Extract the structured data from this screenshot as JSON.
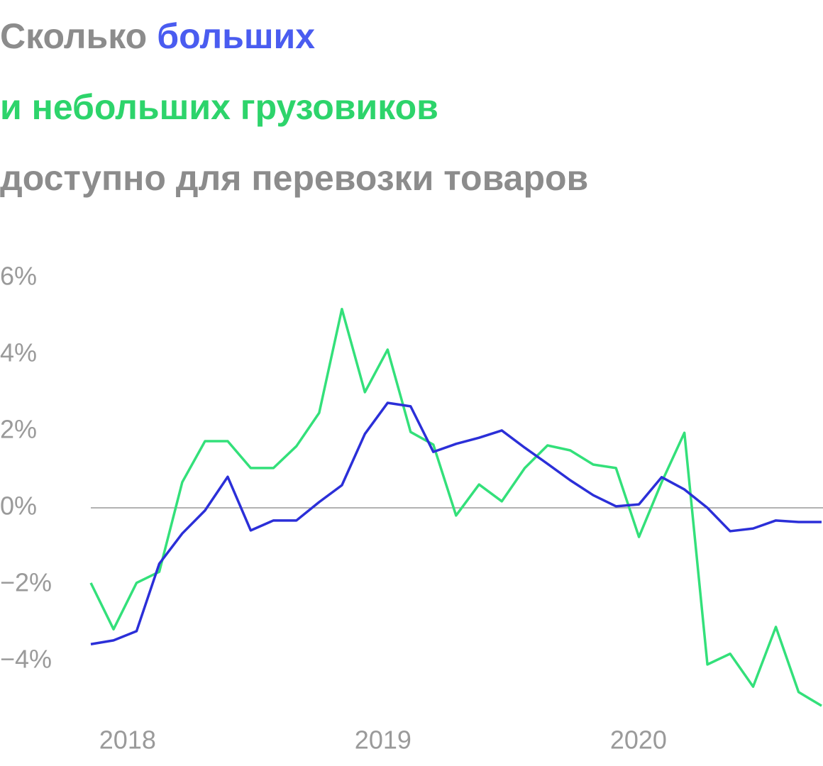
{
  "chart_data": {
    "type": "line",
    "title_lines": [
      [
        {
          "text": "Сколько",
          "color": "#8c8c8c"
        },
        {
          "text": "больших",
          "color": "#4a5cf0"
        }
      ],
      [
        {
          "text": "и небольших грузовиков",
          "color": "#2dd46b"
        }
      ],
      [
        {
          "text": "доступно для перевозки товаров",
          "color": "#8c8c8c"
        }
      ]
    ],
    "x": [
      2017.856,
      2017.945,
      2018.035,
      2018.124,
      2018.214,
      2018.303,
      2018.392,
      2018.482,
      2018.571,
      2018.661,
      2018.75,
      2018.839,
      2018.929,
      2019.018,
      2019.108,
      2019.197,
      2019.286,
      2019.376,
      2019.465,
      2019.555,
      2019.644,
      2019.733,
      2019.823,
      2019.912,
      2020.002,
      2020.091,
      2020.18,
      2020.27,
      2020.359,
      2020.449,
      2020.538,
      2020.627,
      2020.717
    ],
    "series": [
      {
        "color": "#33e07a",
        "values": [
          -1.96,
          -3.17,
          -1.96,
          -1.67,
          0.67,
          1.74,
          1.74,
          1.04,
          1.04,
          1.61,
          2.48,
          5.19,
          3.02,
          4.13,
          1.98,
          1.65,
          -0.2,
          0.61,
          0.17,
          1.04,
          1.63,
          1.5,
          1.13,
          1.04,
          -0.76,
          0.67,
          1.96,
          -4.09,
          -3.81,
          -4.67,
          -3.11,
          -4.81,
          -5.17
        ]
      },
      {
        "color": "#2b2fd8",
        "values": [
          -3.56,
          -3.46,
          -3.22,
          -1.46,
          -0.67,
          -0.07,
          0.81,
          -0.59,
          -0.33,
          -0.33,
          0.15,
          0.59,
          1.93,
          2.74,
          2.65,
          1.46,
          1.67,
          1.83,
          2.02,
          1.57,
          1.15,
          0.72,
          0.33,
          0.04,
          0.09,
          0.8,
          0.48,
          0,
          -0.61,
          -0.54,
          -0.33,
          -0.37,
          -0.37
        ]
      }
    ],
    "xlim": [
      2017.856,
      2020.717
    ],
    "xticks": [
      2018,
      2019,
      2020
    ],
    "ylim": [
      -5.5,
      6.5
    ],
    "yticks": [
      {
        "value": 6,
        "label": "6%"
      },
      {
        "value": 4,
        "label": "4%"
      },
      {
        "value": 2,
        "label": "2%"
      },
      {
        "value": 0,
        "label": "0%"
      },
      {
        "value": -2,
        "label": "−2%"
      },
      {
        "value": -4,
        "label": "−4%"
      }
    ],
    "zero_line": true
  }
}
